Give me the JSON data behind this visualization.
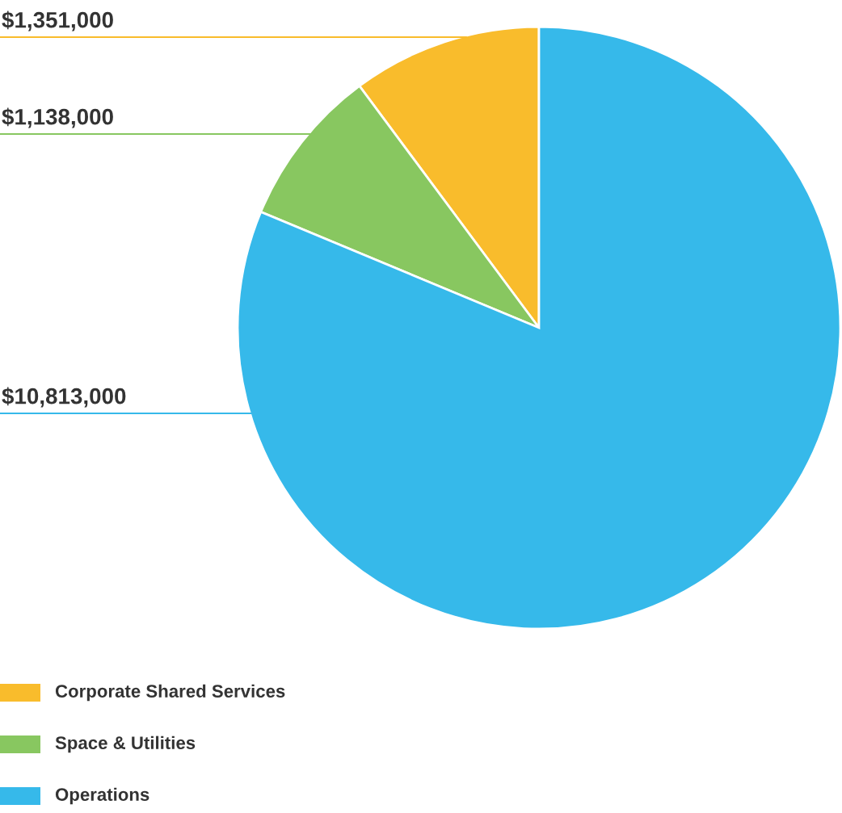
{
  "chart_data": {
    "type": "pie",
    "categories": [
      "Corporate Shared Services",
      "Space & Utilities",
      "Operations"
    ],
    "values": [
      1351000,
      1138000,
      10813000
    ],
    "colors": [
      "#f9bc2c",
      "#88c760",
      "#36b9ea"
    ],
    "value_labels": [
      "$1,351,000",
      "$1,138,000",
      "$10,813,000"
    ],
    "legend": "bottom left"
  }
}
